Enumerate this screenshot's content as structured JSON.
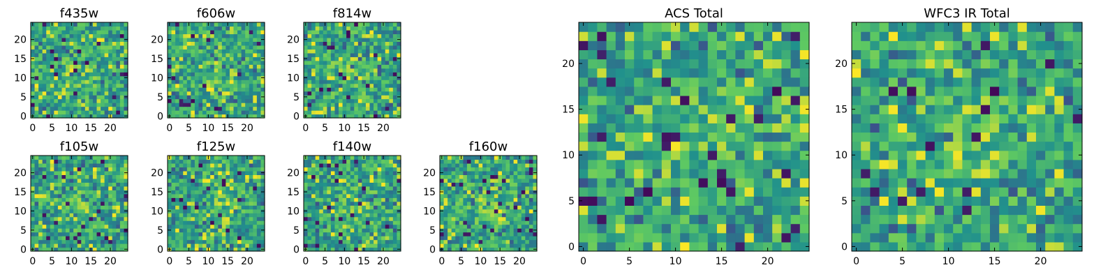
{
  "chart_data": [
    {
      "type": "heatmap",
      "title": "f435w",
      "grid": false,
      "size": 25,
      "x_ticks": [
        0,
        5,
        10,
        15,
        20
      ],
      "y_ticks": [
        0,
        5,
        10,
        15,
        20
      ]
    },
    {
      "type": "heatmap",
      "title": "f606w",
      "grid": false,
      "size": 25,
      "x_ticks": [
        0,
        5,
        10,
        15,
        20
      ],
      "y_ticks": [
        0,
        5,
        10,
        15,
        20
      ]
    },
    {
      "type": "heatmap",
      "title": "f814w",
      "grid": false,
      "size": 25,
      "x_ticks": [
        0,
        5,
        10,
        15,
        20
      ],
      "y_ticks": [
        0,
        5,
        10,
        15,
        20
      ]
    },
    {
      "type": "heatmap",
      "title": "f105w",
      "grid": false,
      "size": 25,
      "x_ticks": [
        0,
        5,
        10,
        15,
        20
      ],
      "y_ticks": [
        0,
        5,
        10,
        15,
        20
      ]
    },
    {
      "type": "heatmap",
      "title": "f125w",
      "grid": false,
      "size": 25,
      "x_ticks": [
        0,
        5,
        10,
        15,
        20
      ],
      "y_ticks": [
        0,
        5,
        10,
        15,
        20
      ]
    },
    {
      "type": "heatmap",
      "title": "f140w",
      "grid": false,
      "size": 25,
      "x_ticks": [
        0,
        5,
        10,
        15,
        20
      ],
      "y_ticks": [
        0,
        5,
        10,
        15,
        20
      ]
    },
    {
      "type": "heatmap",
      "title": "f160w",
      "grid": false,
      "size": 25,
      "x_ticks": [
        0,
        5,
        10,
        15,
        20
      ],
      "y_ticks": [
        0,
        5,
        10,
        15,
        20
      ]
    },
    {
      "type": "heatmap",
      "title": "ACS Total",
      "grid": false,
      "size": 25,
      "x_ticks": [
        0,
        5,
        10,
        15,
        20
      ],
      "y_ticks": [
        0,
        5,
        10,
        15,
        20
      ]
    },
    {
      "type": "heatmap",
      "title": "WFC3 IR Total",
      "grid": false,
      "size": 25,
      "x_ticks": [
        0,
        5,
        10,
        15,
        20
      ],
      "y_ticks": [
        0,
        5,
        10,
        15,
        20
      ]
    }
  ],
  "colormap": [
    "#440154",
    "#3b528b",
    "#21918c",
    "#5ec962",
    "#fde725"
  ]
}
